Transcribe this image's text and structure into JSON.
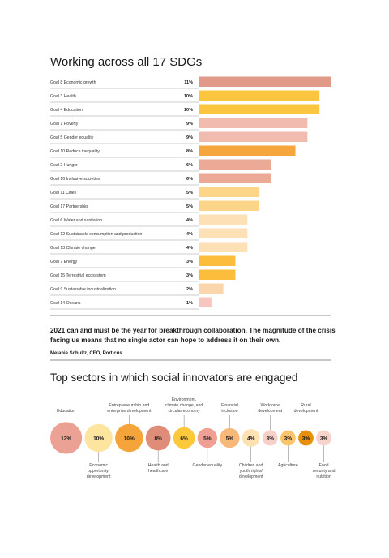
{
  "sdg_chart": {
    "title": "Working across all 17 SDGs"
  },
  "quote": {
    "text": "2021 can and must be the year for breakthrough collaboration. The magnitude of the crisis facing us means that no single actor can hope to address it on their own.",
    "attribution": "Melanie Schultz, CEO, Porticus"
  },
  "sector_chart": {
    "title": "Top sectors in which social innovators are engaged"
  },
  "colors": {
    "salmon": "#e29a88",
    "yellow": "#fcc540",
    "pink": "#f1bbb0",
    "orange": "#f5a73e",
    "lightsalmon": "#eba996",
    "lightyellow": "#fdd588",
    "paleorange": "#fde0b5",
    "amber": "#fbbd3b",
    "peach": "#fbd6ad",
    "lightpink": "#f5c7be",
    "bubble_salmon": "#eba193",
    "bubble_lightyellow": "#fde49f",
    "bubble_orange": "#f4a43a",
    "bubble_darksalmon": "#df8c79",
    "bubble_yellow": "#fdc93a",
    "bubble_pink": "#ef9f94",
    "bubble_tan": "#f7b87a",
    "bubble_cream": "#fde1b3",
    "bubble_blush": "#f7cfc8",
    "bubble_gold": "#fbc46a",
    "bubble_darkorange": "#e8900b",
    "bubble_palepink": "#f7d3cc"
  },
  "chart_data": [
    {
      "type": "bar",
      "title": "Working across all 17 SDGs",
      "categories": [
        "Goal 8  Economic growth",
        "Goal 3  Health",
        "Goal 4  Education",
        "Goal 1  Poverty",
        "Goal 5  Gender equality",
        "Goal 10  Reduce inequality",
        "Goal 2  Hunger",
        "Goal 16  Inclusive societies",
        "Goal 11  Cities",
        "Goal 17  Partnership",
        "Goal 6  Water and sanitation",
        "Goal 12  Sustainable consumption and production",
        "Goal 13  Climate change",
        "Goal 7  Energy",
        "Goal 15  Terrestrial ecosystem",
        "Goal 9  Sustainable industrialization",
        "Goal 14  Oceans"
      ],
      "values": [
        11,
        10,
        10,
        9,
        9,
        8,
        6,
        6,
        5,
        5,
        4,
        4,
        4,
        3,
        3,
        2,
        1
      ],
      "value_labels": [
        "11%",
        "10%",
        "10%",
        "9%",
        "9%",
        "8%",
        "6%",
        "6%",
        "5%",
        "5%",
        "4%",
        "4%",
        "4%",
        "3%",
        "3%",
        "2%",
        "1%"
      ],
      "colors": [
        "#e29a88",
        "#fcc540",
        "#fcc540",
        "#f1bbb0",
        "#f1bbb0",
        "#f5a73e",
        "#eba996",
        "#eba996",
        "#fdd588",
        "#fdd588",
        "#fde0b5",
        "#fde0b5",
        "#fde0b5",
        "#fbbd3b",
        "#fbbd3b",
        "#fbd6ad",
        "#f5c7be"
      ],
      "xlim": [
        0,
        11
      ]
    },
    {
      "type": "bubble",
      "title": "Top sectors in which social innovators are engaged",
      "categories": [
        "Education",
        "Economic opportunity/ development",
        "Entrepreneurship and enterprise development",
        "Health and healthcare",
        "Environment, climate change, and circular economy",
        "Gender equality",
        "Financial inclusion",
        "Children and youth rights/ development",
        "Workforce development",
        "Agriculture",
        "Rural development",
        "Food security and nutrition"
      ],
      "values": [
        13,
        10,
        10,
        8,
        6,
        5,
        5,
        4,
        3,
        3,
        3,
        3
      ],
      "value_labels": [
        "13%",
        "10%",
        "10%",
        "8%",
        "6%",
        "5%",
        "5%",
        "4%",
        "3%",
        "3%",
        "3%",
        "3%"
      ],
      "label_lines": [
        [
          "Education"
        ],
        [
          "Economic",
          "opportunity/",
          "development"
        ],
        [
          "Entrepreneurship and",
          "enterprise development"
        ],
        [
          "Health and",
          "healthcare"
        ],
        [
          "Environment,",
          "climate change, and",
          "circular economy"
        ],
        [
          "Gender equality"
        ],
        [
          "Financial",
          "inclusion"
        ],
        [
          "Children and",
          "youth rights/",
          "development"
        ],
        [
          "Workforce",
          "development"
        ],
        [
          "Agriculture"
        ],
        [
          "Rural",
          "development"
        ],
        [
          "Food",
          "security and",
          "nutrition"
        ]
      ],
      "label_positions": [
        "top",
        "bottom",
        "top",
        "bottom",
        "top",
        "bottom",
        "top",
        "bottom",
        "top",
        "bottom",
        "top",
        "bottom"
      ],
      "colors": [
        "#eba193",
        "#fde49f",
        "#f4a43a",
        "#df8c79",
        "#fdc93a",
        "#ef9f94",
        "#f7b87a",
        "#fde1b3",
        "#f7cfc8",
        "#fbc46a",
        "#e8900b",
        "#f7d3cc"
      ]
    }
  ]
}
